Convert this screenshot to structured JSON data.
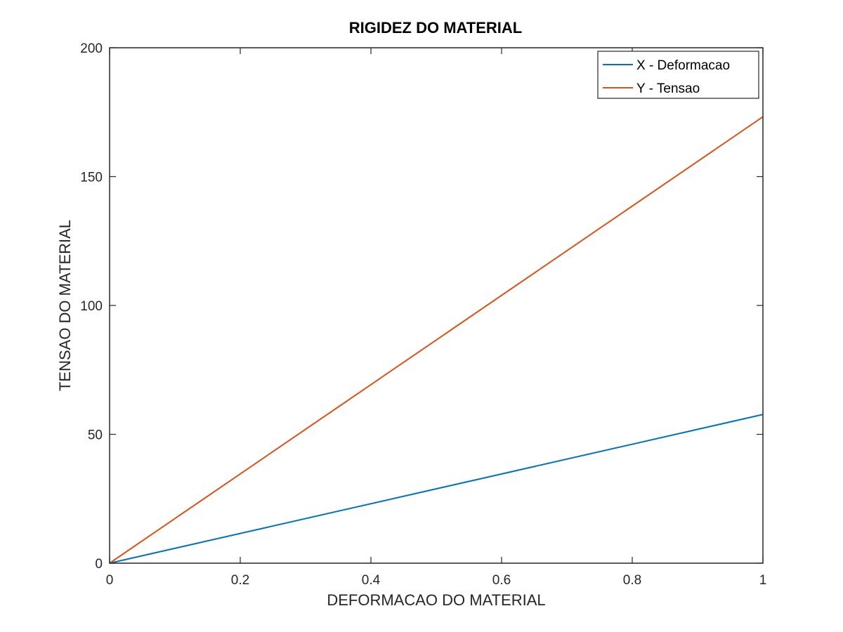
{
  "chart_data": {
    "type": "line",
    "title": "RIGIDEZ DO MATERIAL",
    "xlabel": "DEFORMACAO DO MATERIAL",
    "ylabel": "TENSAO DO MATERIAL",
    "xlim": [
      0,
      1
    ],
    "ylim": [
      0,
      200
    ],
    "xticks": [
      0,
      0.2,
      0.4,
      0.6,
      0.8,
      1
    ],
    "xtick_labels": [
      "0",
      "0.2",
      "0.4",
      "0.6",
      "0.8",
      "1"
    ],
    "yticks": [
      0,
      50,
      100,
      150,
      200
    ],
    "ytick_labels": [
      "0",
      "50",
      "100",
      "150",
      "200"
    ],
    "grid": false,
    "legend_position": "top-right",
    "series": [
      {
        "name": "X - Deformacao",
        "color": "#0072BD",
        "x": [
          0,
          1
        ],
        "y": [
          0,
          57.7
        ]
      },
      {
        "name": "Y - Tensao",
        "color": "#D95319",
        "x": [
          0,
          1
        ],
        "y": [
          0,
          173.2
        ]
      }
    ]
  }
}
